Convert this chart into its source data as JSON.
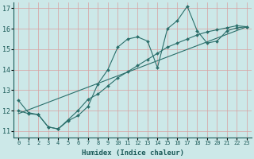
{
  "xlabel": "Humidex (Indice chaleur)",
  "xlim": [
    -0.5,
    23.5
  ],
  "ylim": [
    10.7,
    17.3
  ],
  "yticks": [
    11,
    12,
    13,
    14,
    15,
    16,
    17
  ],
  "xticks": [
    0,
    1,
    2,
    3,
    4,
    5,
    6,
    7,
    8,
    9,
    10,
    11,
    12,
    13,
    14,
    15,
    16,
    17,
    18,
    19,
    20,
    21,
    22,
    23
  ],
  "bg_color": "#cce8e8",
  "line_color": "#2a6e6a",
  "grid_color_major": "#e8b0b0",
  "grid_color_minor": "#e8b0b0",
  "line1_x": [
    0,
    1,
    2,
    3,
    4,
    5,
    6,
    7,
    8,
    9,
    10,
    11,
    12,
    13,
    14,
    15,
    16,
    17,
    18,
    19,
    20,
    21,
    22,
    23
  ],
  "line1_y": [
    12.5,
    11.9,
    11.8,
    11.2,
    11.1,
    11.5,
    11.75,
    12.2,
    13.3,
    14.0,
    15.1,
    15.5,
    15.6,
    15.4,
    14.1,
    16.0,
    16.4,
    17.1,
    15.9,
    15.3,
    15.4,
    15.9,
    16.05,
    16.1
  ],
  "line2_x": [
    0,
    1,
    2,
    3,
    4,
    5,
    6,
    7,
    8,
    9,
    10,
    11,
    12,
    13,
    14,
    15,
    16,
    17,
    18,
    19,
    20,
    21,
    22,
    23
  ],
  "line2_y": [
    12.0,
    11.85,
    11.8,
    11.2,
    11.1,
    11.55,
    12.0,
    12.55,
    12.8,
    13.2,
    13.6,
    13.9,
    14.2,
    14.5,
    14.8,
    15.1,
    15.3,
    15.5,
    15.7,
    15.85,
    15.95,
    16.05,
    16.15,
    16.1
  ],
  "ref_line_x": [
    0,
    23
  ],
  "ref_line_y": [
    11.85,
    16.1
  ]
}
